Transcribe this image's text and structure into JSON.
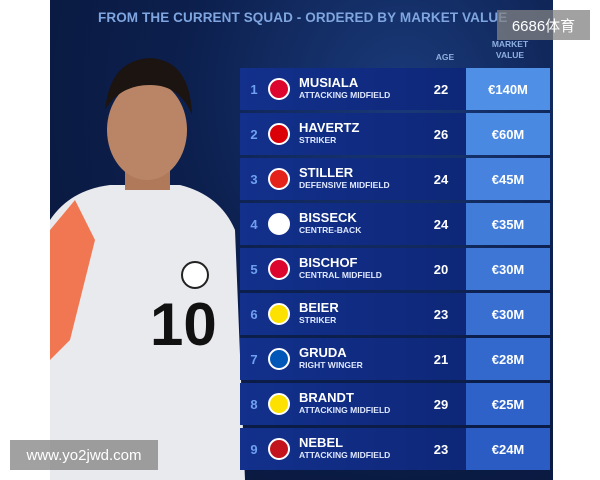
{
  "subtitle": "FROM THE CURRENT SQUAD - ORDERED BY MARKET VALUE",
  "columns": {
    "age": "AGE",
    "market_value_1": "MARKET",
    "market_value_2": "VALUE"
  },
  "players": [
    {
      "rank": "1",
      "name": "MUSIALA",
      "position": "ATTACKING MIDFIELD",
      "age": "22",
      "value": "€140M",
      "club_icon": "bayern-munich-crest",
      "badge_color": "#dc052d"
    },
    {
      "rank": "2",
      "name": "HAVERTZ",
      "position": "STRIKER",
      "age": "26",
      "value": "€60M",
      "club_icon": "arsenal-crest",
      "badge_color": "#db0007"
    },
    {
      "rank": "3",
      "name": "STILLER",
      "position": "DEFENSIVE MIDFIELD",
      "age": "24",
      "value": "€45M",
      "club_icon": "vfb-stuttgart-crest",
      "badge_color": "#e32219"
    },
    {
      "rank": "4",
      "name": "BISSECK",
      "position": "CENTRE-BACK",
      "age": "24",
      "value": "€35M",
      "club_icon": "inter-milan-crest",
      "badge_color": "#ffffff"
    },
    {
      "rank": "5",
      "name": "BISCHOF",
      "position": "CENTRAL MIDFIELD",
      "age": "20",
      "value": "€30M",
      "club_icon": "bayern-munich-crest",
      "badge_color": "#dc052d"
    },
    {
      "rank": "6",
      "name": "BEIER",
      "position": "STRIKER",
      "age": "23",
      "value": "€30M",
      "club_icon": "borussia-dortmund-crest",
      "badge_color": "#fde100"
    },
    {
      "rank": "7",
      "name": "GRUDA",
      "position": "RIGHT WINGER",
      "age": "21",
      "value": "€28M",
      "club_icon": "brighton-crest",
      "badge_color": "#0057b8"
    },
    {
      "rank": "8",
      "name": "BRANDT",
      "position": "ATTACKING MIDFIELD",
      "age": "29",
      "value": "€25M",
      "club_icon": "borussia-dortmund-crest",
      "badge_color": "#fde100"
    },
    {
      "rank": "9",
      "name": "NEBEL",
      "position": "ATTACKING MIDFIELD",
      "age": "23",
      "value": "€24M",
      "club_icon": "mainz-05-crest",
      "badge_color": "#c3141e"
    }
  ],
  "watermarks": {
    "top": "6686体育",
    "bottom": "www.yo2jwd.com"
  },
  "colors": {
    "row": "#12308c",
    "value_top": "#4f8fe6",
    "value_bottom": "#2a5cc4",
    "rank": "#6fa0ef"
  }
}
